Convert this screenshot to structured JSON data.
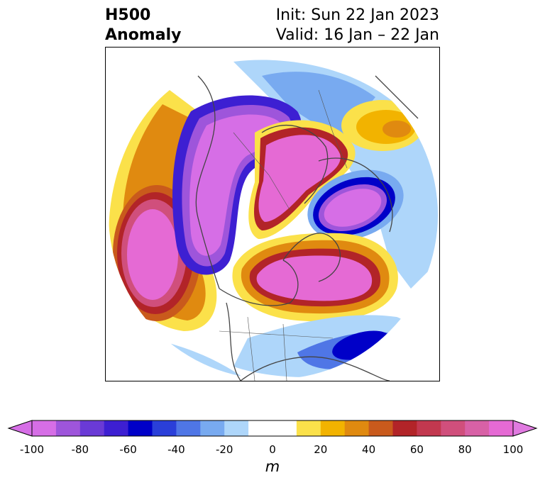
{
  "title": {
    "left_line1": "H500",
    "left_line2": "Anomaly",
    "right_line1": "Init: Sun 22 Jan 2023",
    "right_line2": "Valid: 16 Jan – 22 Jan"
  },
  "colorbar": {
    "units": "m",
    "ticks": [
      "-100",
      "-80",
      "-60",
      "-40",
      "-20",
      "0",
      "20",
      "40",
      "60",
      "80",
      "100"
    ],
    "colors": [
      "#d66ee6",
      "#9e55db",
      "#6a3ad6",
      "#3d1fd2",
      "#0000c8",
      "#2a3fd9",
      "#4f76e6",
      "#78aaf0",
      "#aed6fa",
      "#ffffff",
      "#ffffff",
      "#fbe14a",
      "#f2b300",
      "#e08a10",
      "#c95a1c",
      "#b22428",
      "#c2384f",
      "#d04f7c",
      "#d861a6",
      "#e56ad4"
    ],
    "under_color": "#d66ee6",
    "over_color": "#e07ae0"
  }
}
